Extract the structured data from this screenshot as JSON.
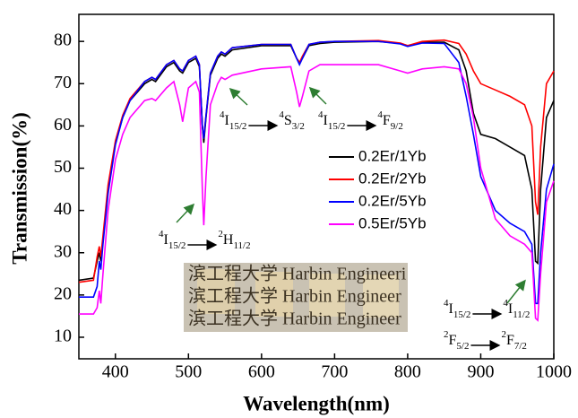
{
  "chart_data": {
    "type": "line",
    "xlabel": "Wavelength(nm)",
    "ylabel": "Transmission(%)",
    "xlim": [
      350,
      1000
    ],
    "ylim": [
      4.9,
      86.4
    ],
    "xticks": [
      400,
      500,
      600,
      700,
      800,
      900,
      1000
    ],
    "yticks": [
      10,
      20,
      30,
      40,
      50,
      60,
      70,
      80
    ],
    "legend": "right",
    "x": [
      350,
      370,
      375,
      378,
      380,
      383,
      390,
      400,
      410,
      420,
      440,
      450,
      455,
      470,
      480,
      488,
      492,
      500,
      510,
      515,
      519,
      521,
      524,
      530,
      540,
      545,
      550,
      560,
      600,
      640,
      648,
      652,
      656,
      665,
      680,
      700,
      760,
      790,
      800,
      820,
      850,
      870,
      880,
      890,
      900,
      920,
      940,
      960,
      970,
      975,
      978,
      982,
      990,
      1000
    ],
    "series": [
      {
        "name": "0.2Er/1Yb",
        "color": "#000000",
        "values": [
          23.5,
          24,
          28,
          30,
          28,
          33,
          45,
          56,
          62,
          66,
          70,
          71,
          70.5,
          74,
          75,
          73,
          72.5,
          75,
          76,
          74,
          60,
          56,
          62,
          72,
          76,
          77,
          76.5,
          78,
          79,
          79,
          76,
          75,
          76,
          79,
          79.5,
          79.8,
          80,
          79.5,
          79,
          79.8,
          79.8,
          78,
          73,
          63,
          58,
          57,
          55,
          53,
          45,
          28,
          27.5,
          45,
          62,
          66
        ]
      },
      {
        "name": "0.2Er/2Yb",
        "color": "#ff0000",
        "values": [
          23,
          23.5,
          29,
          31.5,
          29,
          34,
          46,
          56.5,
          62.5,
          66.5,
          70.5,
          71.5,
          71,
          74.5,
          75.5,
          73.5,
          73,
          75.5,
          76.5,
          74.5,
          60,
          57,
          62.5,
          72.5,
          76.5,
          77.5,
          77,
          78.5,
          79.3,
          79.3,
          76,
          75,
          76.5,
          79.3,
          79.8,
          80,
          80.2,
          79.6,
          79,
          80,
          80.3,
          79.5,
          77,
          73,
          70,
          68.5,
          67,
          65,
          60,
          42,
          39,
          55,
          70,
          73
        ]
      },
      {
        "name": "0.2Er/5Yb",
        "color": "#0000ff",
        "values": [
          19.5,
          19.5,
          22,
          28,
          26,
          32,
          44,
          55.5,
          62,
          66,
          70.5,
          71.5,
          71,
          74.5,
          75.5,
          73.5,
          73,
          75.5,
          76.5,
          74.5,
          60,
          57,
          62.5,
          72.5,
          76.5,
          77.5,
          77,
          78.5,
          79.3,
          79.3,
          76,
          74.5,
          76,
          79.3,
          79.8,
          80,
          80,
          79.4,
          78.8,
          79.6,
          79.5,
          75,
          67,
          58,
          48,
          40,
          37,
          35,
          32,
          18,
          18,
          30,
          45,
          51
        ]
      },
      {
        "name": "0.5Er/5Yb",
        "color": "#ff00ff",
        "values": [
          15.5,
          15.5,
          17,
          21,
          18,
          25,
          40,
          52,
          58,
          62,
          66,
          66.5,
          66,
          69,
          70.5,
          65,
          61,
          69,
          70.5,
          68,
          45,
          36.5,
          48,
          65,
          70,
          71.5,
          71,
          72,
          73.5,
          74,
          68,
          64.5,
          67,
          73,
          74.5,
          74.5,
          74.5,
          73,
          72.5,
          73.5,
          74,
          73.5,
          70,
          62,
          50,
          38,
          34,
          32,
          30,
          14.5,
          14,
          25,
          42,
          47
        ]
      }
    ],
    "annotations": [
      {
        "from": {
          "sup": "4",
          "term": "I",
          "sub": "15/2"
        },
        "to": {
          "sup": "2",
          "term": "H",
          "sub": "11/2"
        }
      },
      {
        "from": {
          "sup": "4",
          "term": "I",
          "sub": "15/2"
        },
        "to": {
          "sup": "4",
          "term": "S",
          "sub": "3/2"
        }
      },
      {
        "from": {
          "sup": "4",
          "term": "I",
          "sub": "15/2"
        },
        "to": {
          "sup": "4",
          "term": "F",
          "sub": "9/2"
        }
      },
      {
        "from": {
          "sup": "4",
          "term": "I",
          "sub": "15/2"
        },
        "to": {
          "sup": "4",
          "term": "I",
          "sub": "11/2"
        }
      },
      {
        "from": {
          "sup": "2",
          "term": "F",
          "sub": "5/2"
        },
        "to": {
          "sup": "2",
          "term": "F",
          "sub": "7/2"
        }
      }
    ],
    "inset_text": [
      "滨工程大学 Harbin Engineeri",
      "滨工程大学 Harbin Engineer",
      "滨工程大学 Harbin Engineer"
    ]
  }
}
